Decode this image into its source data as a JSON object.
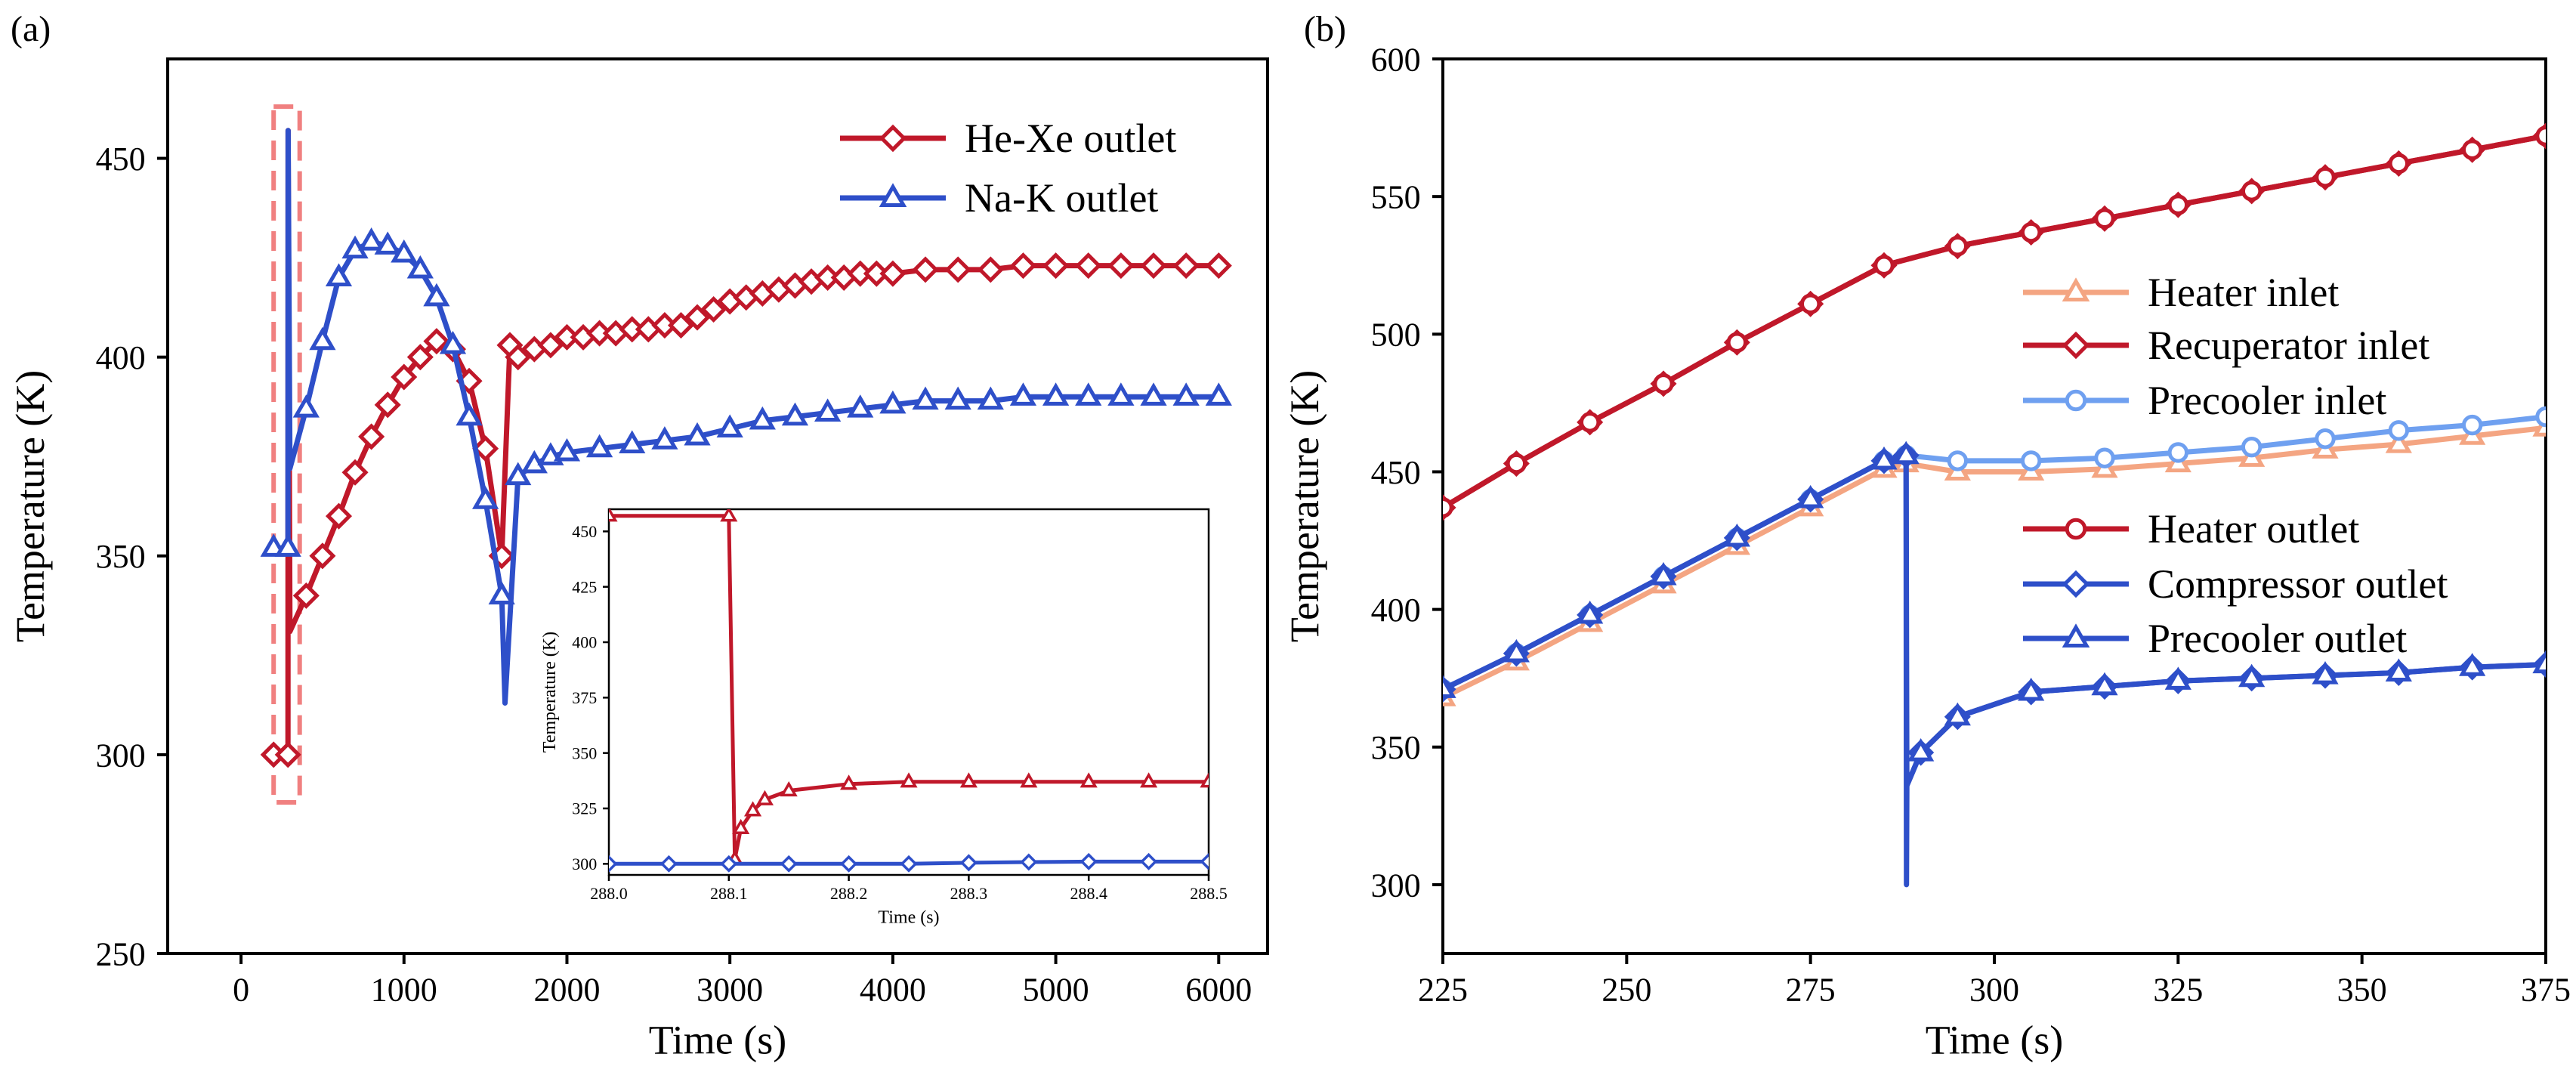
{
  "chart_data": [
    {
      "panel_label": "(a)",
      "type": "line",
      "xlabel": "Time (s)",
      "ylabel": "Temperature (K)",
      "xlim": [
        -450,
        6300
      ],
      "ylim": [
        250,
        475
      ],
      "xticks": [
        0,
        1000,
        2000,
        3000,
        4000,
        5000,
        6000
      ],
      "yticks": [
        250,
        300,
        350,
        400,
        450
      ],
      "legend_position": "top-right",
      "annotation": "dashed highlight box around t ≈ 288 s (zoomed in inset)",
      "series": [
        {
          "name": "He-Xe outlet",
          "color": "#c0182a",
          "marker": "diamond",
          "x": [
            200,
            288,
            289,
            300,
            400,
            500,
            600,
            700,
            800,
            900,
            1000,
            1100,
            1200,
            1300,
            1400,
            1500,
            1600,
            1650,
            1700,
            1800,
            1900,
            2000,
            2100,
            2200,
            2300,
            2400,
            2500,
            2600,
            2700,
            2800,
            2900,
            3000,
            3100,
            3200,
            3300,
            3400,
            3500,
            3600,
            3700,
            3800,
            3900,
            4000,
            4200,
            4400,
            4600,
            4800,
            5000,
            5200,
            5400,
            5600,
            5800,
            6000
          ],
          "y": [
            300,
            300,
            457,
            331,
            340,
            350,
            360,
            371,
            380,
            388,
            395,
            400,
            404,
            402,
            394,
            377,
            350,
            403,
            400,
            402,
            403,
            405,
            405,
            406,
            406,
            407,
            407,
            408,
            408,
            410,
            412,
            414,
            415,
            416,
            417,
            418,
            419,
            420,
            420,
            421,
            421,
            421,
            422,
            422,
            422,
            423,
            423,
            423,
            423,
            423,
            423,
            423
          ]
        },
        {
          "name": "Na-K outlet",
          "color": "#2e4fc9",
          "marker": "triangle",
          "x": [
            200,
            288,
            289,
            300,
            400,
            500,
            600,
            700,
            800,
            900,
            1000,
            1100,
            1200,
            1300,
            1400,
            1500,
            1600,
            1620,
            1700,
            1800,
            1900,
            2000,
            2200,
            2400,
            2600,
            2800,
            3000,
            3200,
            3400,
            3600,
            3800,
            4000,
            4200,
            4400,
            4600,
            4800,
            5000,
            5200,
            5400,
            5600,
            5800,
            6000
          ],
          "y": [
            352,
            352,
            457,
            372,
            387,
            404,
            420,
            427,
            429,
            428,
            426,
            422,
            415,
            403,
            385,
            364,
            340,
            313,
            370,
            373,
            375,
            376,
            377,
            378,
            379,
            380,
            382,
            384,
            385,
            386,
            387,
            388,
            389,
            389,
            389,
            390,
            390,
            390,
            390,
            390,
            390,
            390
          ]
        }
      ]
    },
    {
      "panel_label": "",
      "inset_of": "(a)",
      "type": "line",
      "xlabel": "Time (s)",
      "ylabel": "Temperature (K)",
      "xlim": [
        288.0,
        288.5
      ],
      "ylim": [
        295,
        460
      ],
      "xticks": [
        "288.0",
        "288.1",
        "288.2",
        "288.3",
        "288.4",
        "288.5"
      ],
      "yticks": [
        300,
        325,
        350,
        375,
        400,
        425,
        450
      ],
      "series": [
        {
          "name": "",
          "color": "#c0182a",
          "marker": "triangle",
          "x": [
            288.0,
            288.1,
            288.105,
            288.11,
            288.12,
            288.13,
            288.15,
            288.2,
            288.25,
            288.3,
            288.35,
            288.4,
            288.45,
            288.5
          ],
          "y": [
            457,
            457,
            302,
            316,
            324,
            329,
            333,
            336,
            337,
            337,
            337,
            337,
            337,
            337
          ]
        },
        {
          "name": "",
          "color": "#2e4fc9",
          "marker": "diamond",
          "x": [
            288.0,
            288.05,
            288.1,
            288.15,
            288.2,
            288.25,
            288.3,
            288.35,
            288.4,
            288.45,
            288.5
          ],
          "y": [
            300,
            300,
            300,
            300,
            300,
            300,
            300.5,
            300.8,
            301,
            301,
            301
          ]
        }
      ]
    },
    {
      "panel_label": "(b)",
      "type": "line",
      "xlabel": "Time (s)",
      "ylabel": "Temperature (K)",
      "xlim": [
        225,
        375
      ],
      "ylim": [
        275,
        600
      ],
      "xticks": [
        225,
        250,
        275,
        300,
        325,
        350,
        375
      ],
      "yticks": [
        300,
        350,
        400,
        450,
        500,
        550,
        600
      ],
      "legend_position": "center-right (two groups)",
      "series": [
        {
          "name": "Heater inlet",
          "color": "#f4a582",
          "marker": "triangle",
          "x": [
            225,
            235,
            245,
            255,
            265,
            275,
            285,
            288,
            295,
            305,
            315,
            325,
            335,
            345,
            355,
            365,
            375
          ],
          "y": [
            368,
            381,
            395,
            409,
            423,
            437,
            451,
            453,
            450,
            450,
            451,
            453,
            455,
            458,
            460,
            463,
            466
          ]
        },
        {
          "name": "Recuperator inlet",
          "color": "#c0182a",
          "marker": "diamond",
          "x": [
            225,
            235,
            245,
            255,
            265,
            275,
            285,
            295,
            305,
            315,
            325,
            335,
            345,
            355,
            365,
            375
          ],
          "y": [
            437,
            453,
            468,
            482,
            497,
            511,
            525,
            532,
            537,
            542,
            547,
            552,
            557,
            562,
            567,
            572
          ]
        },
        {
          "name": "Precooler inlet",
          "color": "#6fa0f0",
          "marker": "circle",
          "x": [
            225,
            235,
            245,
            255,
            265,
            275,
            285,
            288,
            295,
            305,
            315,
            325,
            335,
            345,
            355,
            365,
            375
          ],
          "y": [
            371,
            384,
            398,
            412,
            426,
            440,
            454,
            456,
            454,
            454,
            455,
            457,
            459,
            462,
            465,
            467,
            470
          ]
        },
        {
          "name": "Heater outlet",
          "color": "#c0182a",
          "marker": "circle",
          "x": [
            225,
            235,
            245,
            255,
            265,
            275,
            285,
            295,
            305,
            315,
            325,
            335,
            345,
            355,
            365,
            375
          ],
          "y": [
            437,
            453,
            468,
            482,
            497,
            511,
            525,
            532,
            537,
            542,
            547,
            552,
            557,
            562,
            567,
            572
          ]
        },
        {
          "name": "Compressor outlet",
          "color": "#2e4fc9",
          "marker": "diamond",
          "x": [
            225,
            235,
            245,
            255,
            265,
            275,
            285,
            288,
            288.1,
            290,
            295,
            305,
            315,
            325,
            335,
            345,
            355,
            365,
            375
          ],
          "y": [
            371,
            384,
            398,
            412,
            426,
            440,
            454,
            456,
            336,
            348,
            361,
            370,
            372,
            374,
            375,
            376,
            377,
            379,
            380
          ]
        },
        {
          "name": "Precooler outlet",
          "color": "#2e4fc9",
          "marker": "triangle",
          "x": [
            225,
            235,
            245,
            255,
            265,
            275,
            285,
            288,
            288.05,
            288.1,
            290,
            295,
            305,
            315,
            325,
            335,
            345,
            355,
            365,
            375
          ],
          "y": [
            371,
            384,
            398,
            412,
            426,
            440,
            454,
            456,
            300,
            336,
            348,
            361,
            370,
            372,
            374,
            375,
            376,
            377,
            379,
            380
          ]
        }
      ]
    }
  ]
}
